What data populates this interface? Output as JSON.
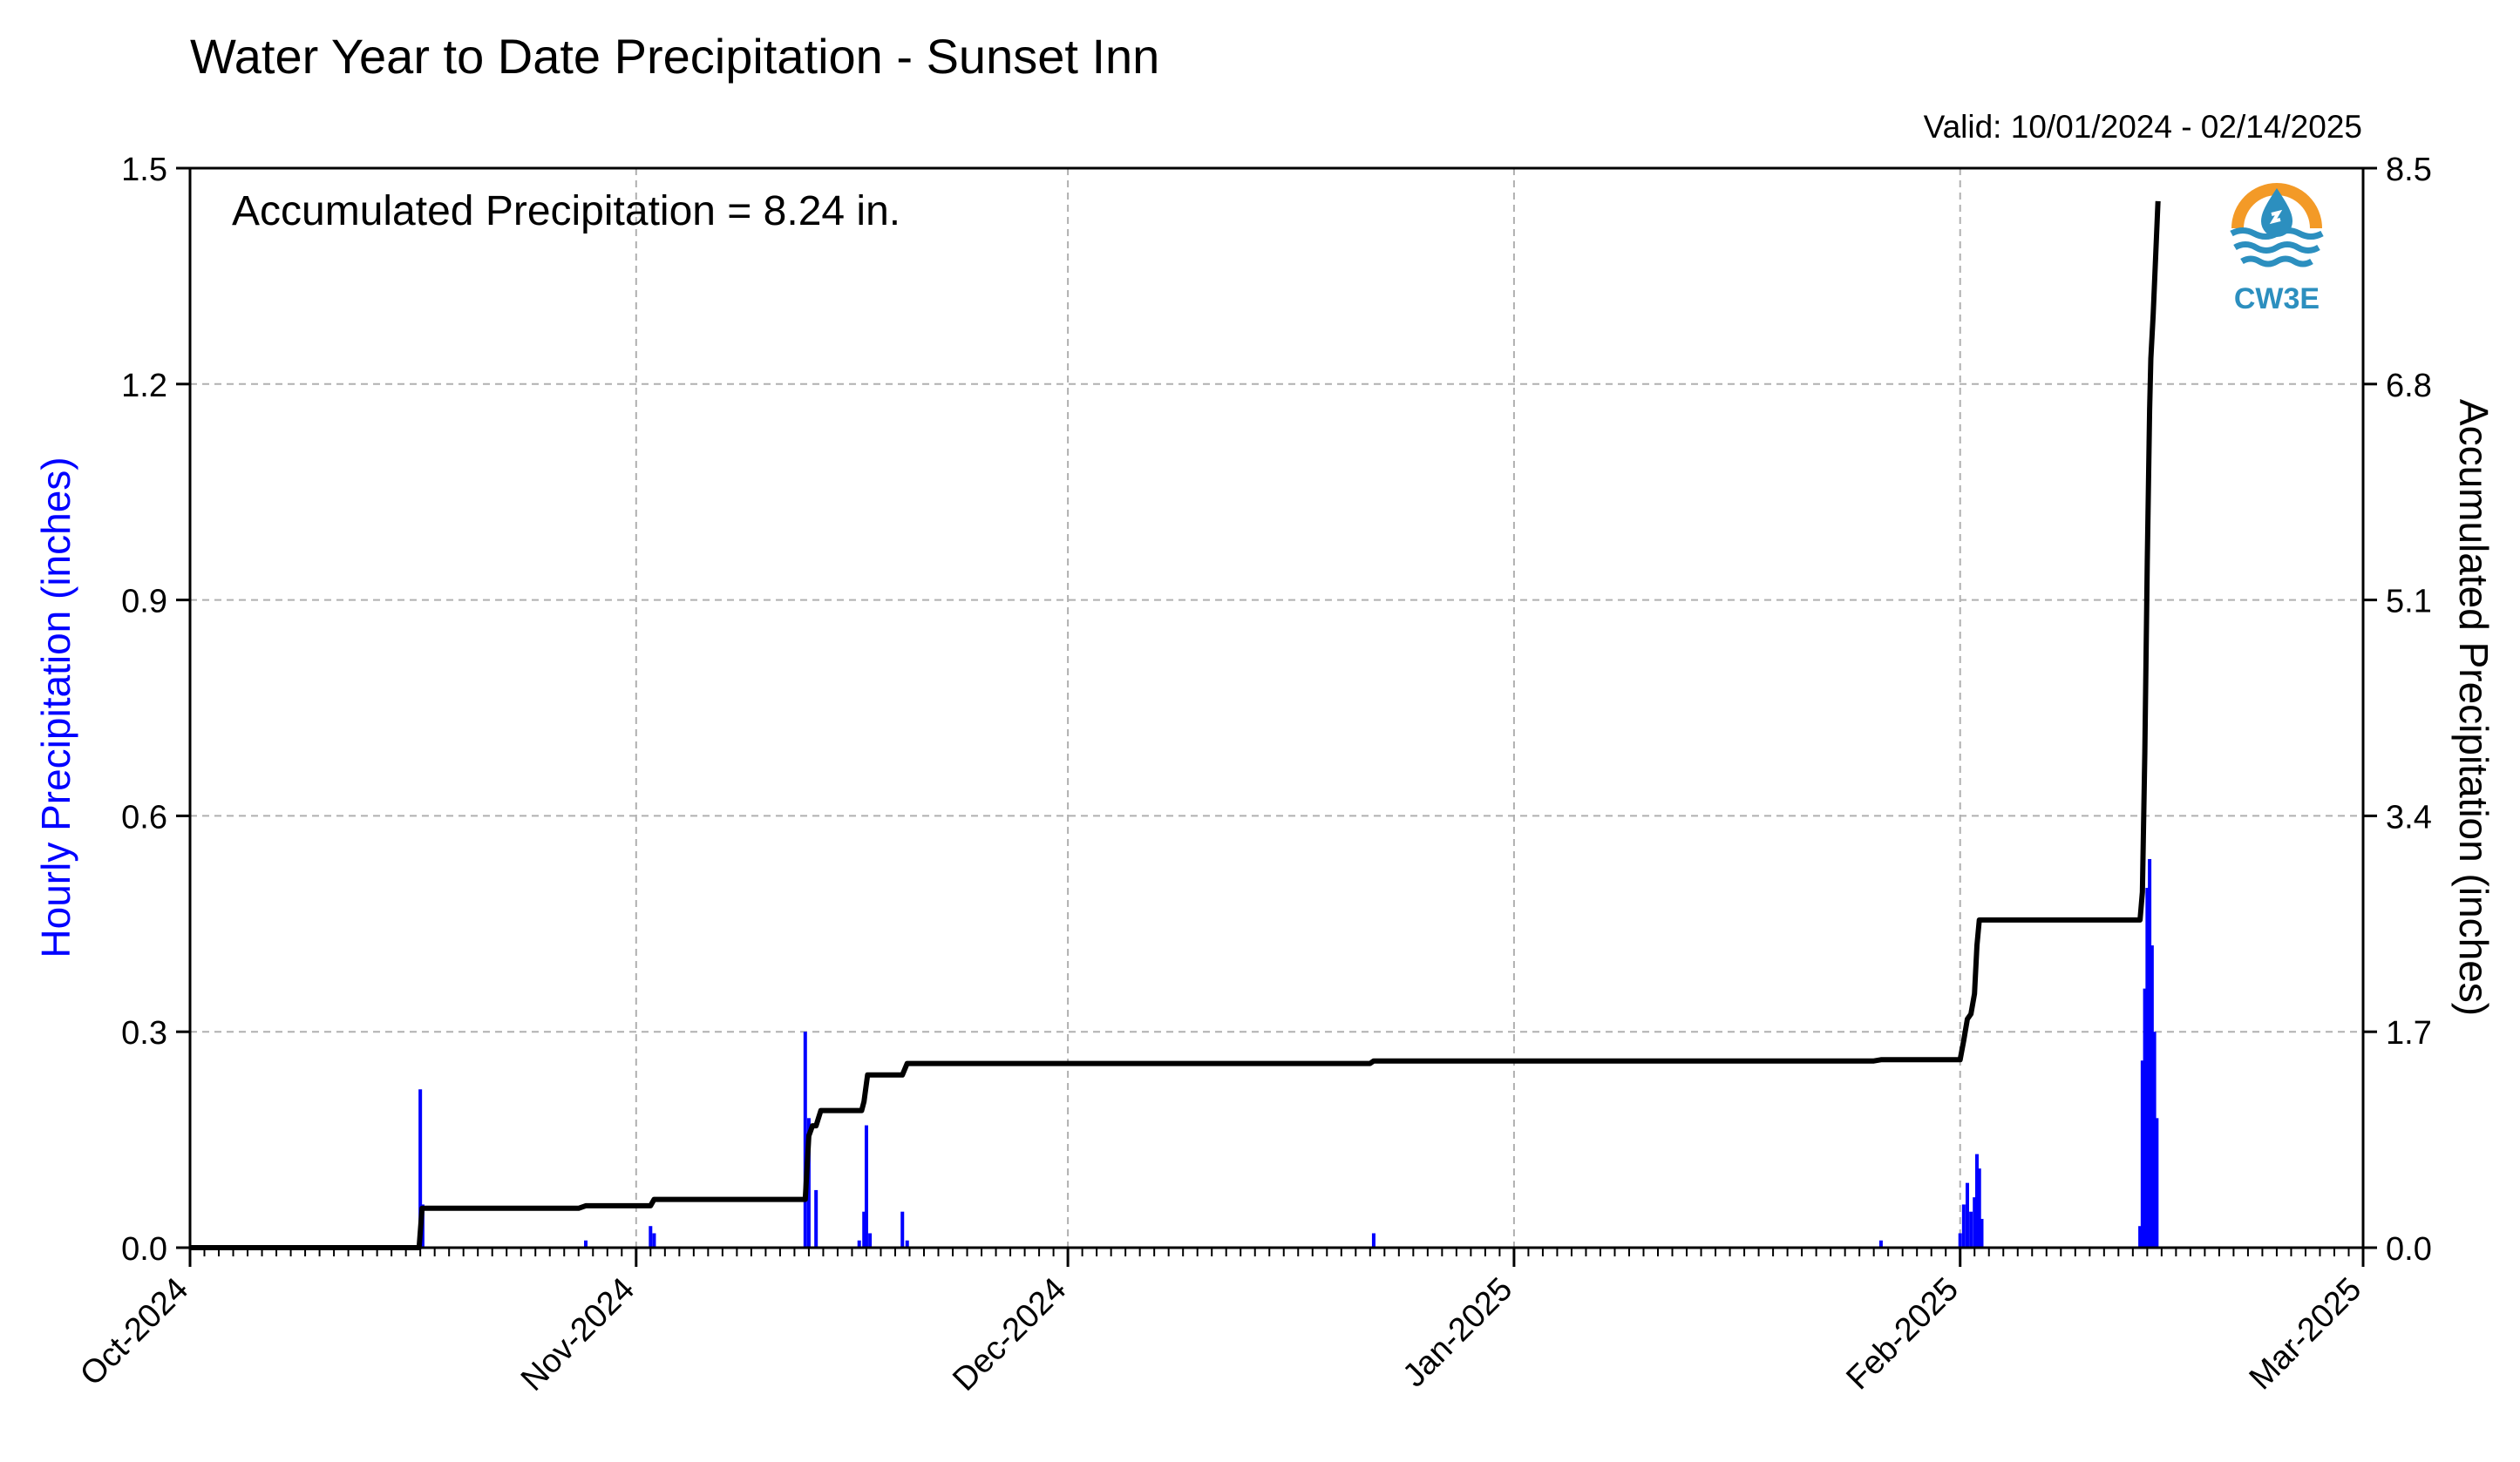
{
  "chart_data": {
    "type": "bar",
    "title": "Water Year to Date Precipitation - Sunset Inn",
    "subtitle": "Valid: 10/01/2024 - 02/14/2025",
    "annotation": "Accumulated Precipitation = 8.24 in.",
    "logo_text": "CW3E",
    "x_axis": {
      "type": "date",
      "range": [
        "2024-10-01",
        "2025-03-01"
      ],
      "tick_labels": [
        "Oct-2024",
        "Nov-2024",
        "Dec-2024",
        "Jan-2025",
        "Feb-2025",
        "Mar-2025"
      ],
      "tick_dates": [
        "2024-10-01",
        "2024-11-01",
        "2024-12-01",
        "2025-01-01",
        "2025-02-01",
        "2025-03-01"
      ],
      "minor_ticks": "daily"
    },
    "y_left": {
      "label": "Hourly Precipitation (inches)",
      "range": [
        0,
        1.5
      ],
      "ticks": [
        "0.0",
        "0.3",
        "0.6",
        "0.9",
        "1.2",
        "1.5"
      ],
      "color": "#0000ff"
    },
    "y_right": {
      "label": "Accumulated Precipitation (inches)",
      "range": [
        0,
        8.5
      ],
      "ticks": [
        "0.0",
        "1.7",
        "3.4",
        "5.1",
        "6.8",
        "8.5"
      ],
      "color": "#000000"
    },
    "grid": true,
    "series": [
      {
        "type": "bar",
        "axis": "left",
        "color": "#0000ff",
        "values": [
          [
            "2024-10-17T00:00",
            0.22
          ],
          [
            "2024-10-17T04:00",
            0.06
          ],
          [
            "2024-10-28T12:00",
            0.01
          ],
          [
            "2024-11-02T00:00",
            0.03
          ],
          [
            "2024-11-02T06:00",
            0.02
          ],
          [
            "2024-11-12T18:00",
            0.3
          ],
          [
            "2024-11-13T00:00",
            0.18
          ],
          [
            "2024-11-13T12:00",
            0.08
          ],
          [
            "2024-11-16T12:00",
            0.01
          ],
          [
            "2024-11-16T20:00",
            0.05
          ],
          [
            "2024-11-17T00:00",
            0.17
          ],
          [
            "2024-11-17T06:00",
            0.02
          ],
          [
            "2024-11-19T12:00",
            0.05
          ],
          [
            "2024-11-19T20:00",
            0.01
          ],
          [
            "2024-12-22T06:00",
            0.02
          ],
          [
            "2025-01-26T12:00",
            0.01
          ],
          [
            "2025-02-01T00:00",
            0.02
          ],
          [
            "2025-02-01T06:00",
            0.06
          ],
          [
            "2025-02-01T12:00",
            0.09
          ],
          [
            "2025-02-01T18:00",
            0.05
          ],
          [
            "2025-02-02T00:00",
            0.07
          ],
          [
            "2025-02-02T04:00",
            0.13
          ],
          [
            "2025-02-02T08:00",
            0.11
          ],
          [
            "2025-02-02T12:00",
            0.04
          ],
          [
            "2025-02-13T12:00",
            0.03
          ],
          [
            "2025-02-13T16:00",
            0.26
          ],
          [
            "2025-02-13T20:00",
            0.36
          ],
          [
            "2025-02-14T00:00",
            0.5
          ],
          [
            "2025-02-14T04:00",
            0.54
          ],
          [
            "2025-02-14T08:00",
            0.42
          ],
          [
            "2025-02-14T12:00",
            0.3
          ],
          [
            "2025-02-14T16:00",
            0.18
          ]
        ]
      },
      {
        "type": "line",
        "axis": "right",
        "color": "#000000",
        "points": [
          [
            "2024-10-01",
            0.0
          ],
          [
            "2024-10-16T22:00",
            0.0
          ],
          [
            "2024-10-17T03:00",
            0.31
          ],
          [
            "2024-10-28T00:00",
            0.31
          ],
          [
            "2024-10-28T12:00",
            0.33
          ],
          [
            "2024-11-02T00:00",
            0.33
          ],
          [
            "2024-11-02T06:00",
            0.38
          ],
          [
            "2024-11-12T18:00",
            0.38
          ],
          [
            "2024-11-13T00:00",
            0.88
          ],
          [
            "2024-11-13T06:00",
            0.96
          ],
          [
            "2024-11-13T12:00",
            0.96
          ],
          [
            "2024-11-13T20:00",
            1.08
          ],
          [
            "2024-11-16T16:00",
            1.08
          ],
          [
            "2024-11-16T20:00",
            1.15
          ],
          [
            "2024-11-17T02:00",
            1.36
          ],
          [
            "2024-11-19T12:00",
            1.36
          ],
          [
            "2024-11-19T20:00",
            1.45
          ],
          [
            "2024-12-22T00:00",
            1.45
          ],
          [
            "2024-12-22T06:00",
            1.47
          ],
          [
            "2025-01-26T00:00",
            1.47
          ],
          [
            "2025-01-26T12:00",
            1.48
          ],
          [
            "2025-02-01T00:00",
            1.48
          ],
          [
            "2025-02-01T06:00",
            1.63
          ],
          [
            "2025-02-01T12:00",
            1.8
          ],
          [
            "2025-02-01T18:00",
            1.84
          ],
          [
            "2025-02-02T00:00",
            2.0
          ],
          [
            "2025-02-02T04:00",
            2.38
          ],
          [
            "2025-02-02T08:00",
            2.58
          ],
          [
            "2025-02-13T12:00",
            2.58
          ],
          [
            "2025-02-13T16:00",
            2.8
          ],
          [
            "2025-02-13T20:00",
            3.9
          ],
          [
            "2025-02-14T00:00",
            5.4
          ],
          [
            "2025-02-14T04:00",
            6.6
          ],
          [
            "2025-02-14T06:00",
            7.0
          ],
          [
            "2025-02-14T10:00",
            7.35
          ],
          [
            "2025-02-14T18:00",
            8.24
          ]
        ]
      }
    ]
  }
}
